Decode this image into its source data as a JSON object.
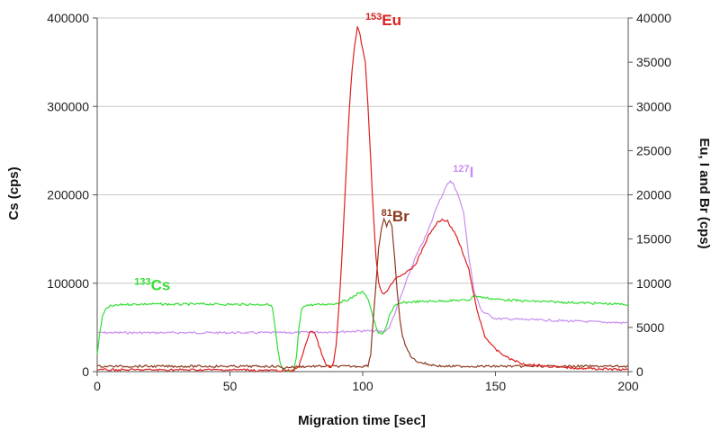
{
  "chart_data": {
    "type": "line",
    "xlabel": "Migration time [sec]",
    "ylabel_left": "Cs (cps)",
    "ylabel_right": "Eu, I and Br (cps)",
    "xlim": [
      0,
      200
    ],
    "ylim_left": [
      0,
      400000
    ],
    "ylim_right": [
      0,
      40000
    ],
    "x_ticks": [
      "0",
      "50",
      "100",
      "150",
      "200"
    ],
    "y_ticks_left": [
      "0",
      "100000",
      "200000",
      "300000",
      "400000"
    ],
    "y_ticks_right": [
      "0",
      "5000",
      "10000",
      "15000",
      "20000",
      "25000",
      "30000",
      "35000",
      "40000"
    ],
    "grid": "horizontal",
    "legend": "inline labels",
    "series": [
      {
        "name": "Cs",
        "isotope": "133",
        "label_x": 14,
        "label_y": 92000,
        "axis": "left",
        "color": "#33dd33",
        "points": [
          [
            0,
            20000
          ],
          [
            1,
            45000
          ],
          [
            2,
            62000
          ],
          [
            3,
            70000
          ],
          [
            5,
            74000
          ],
          [
            10,
            76000
          ],
          [
            20,
            76500
          ],
          [
            30,
            76000
          ],
          [
            40,
            76500
          ],
          [
            50,
            76000
          ],
          [
            60,
            76000
          ],
          [
            65,
            76000
          ],
          [
            66,
            72000
          ],
          [
            67,
            50000
          ],
          [
            68,
            25000
          ],
          [
            69,
            8000
          ],
          [
            70,
            2000
          ],
          [
            72,
            0
          ],
          [
            74,
            1000
          ],
          [
            75,
            15000
          ],
          [
            76,
            50000
          ],
          [
            77,
            70000
          ],
          [
            78,
            75000
          ],
          [
            85,
            76000
          ],
          [
            90,
            77000
          ],
          [
            95,
            82000
          ],
          [
            98,
            88000
          ],
          [
            100,
            90000
          ],
          [
            101,
            88000
          ],
          [
            102,
            82000
          ],
          [
            103,
            72000
          ],
          [
            104,
            60000
          ],
          [
            105,
            50000
          ],
          [
            106,
            44000
          ],
          [
            107,
            42000
          ],
          [
            108,
            44000
          ],
          [
            109,
            52000
          ],
          [
            110,
            64000
          ],
          [
            112,
            74000
          ],
          [
            115,
            78000
          ],
          [
            120,
            79000
          ],
          [
            130,
            80000
          ],
          [
            140,
            81000
          ],
          [
            142,
            86000
          ],
          [
            145,
            84000
          ],
          [
            150,
            82000
          ],
          [
            160,
            80000
          ],
          [
            170,
            79000
          ],
          [
            180,
            78000
          ],
          [
            190,
            77000
          ],
          [
            200,
            76000
          ]
        ]
      },
      {
        "name": "Eu",
        "isotope": "153",
        "label_x": 101,
        "label_y": 39200,
        "axis": "right",
        "color": "#dd2020",
        "points": [
          [
            0,
            200
          ],
          [
            50,
            200
          ],
          [
            58,
            200
          ],
          [
            60,
            100
          ],
          [
            62,
            150
          ],
          [
            70,
            100
          ],
          [
            74,
            100
          ],
          [
            76,
            700
          ],
          [
            78,
            2500
          ],
          [
            80,
            4500
          ],
          [
            81,
            4600
          ],
          [
            82,
            4300
          ],
          [
            84,
            2500
          ],
          [
            86,
            800
          ],
          [
            88,
            400
          ],
          [
            89,
            1000
          ],
          [
            90,
            3000
          ],
          [
            91,
            7000
          ],
          [
            92,
            12000
          ],
          [
            93,
            18000
          ],
          [
            94,
            24000
          ],
          [
            95,
            30000
          ],
          [
            96,
            34000
          ],
          [
            97,
            37000
          ],
          [
            98,
            39000
          ],
          [
            99,
            38000
          ],
          [
            100,
            36500
          ],
          [
            101,
            35000
          ],
          [
            102,
            30000
          ],
          [
            103,
            24000
          ],
          [
            104,
            18000
          ],
          [
            105,
            13000
          ],
          [
            106,
            10000
          ],
          [
            107,
            9000
          ],
          [
            108,
            8800
          ],
          [
            110,
            9500
          ],
          [
            112,
            10500
          ],
          [
            115,
            11000
          ],
          [
            118,
            11500
          ],
          [
            120,
            12200
          ],
          [
            122,
            13500
          ],
          [
            125,
            15500
          ],
          [
            128,
            16800
          ],
          [
            130,
            17200
          ],
          [
            132,
            17000
          ],
          [
            133,
            16500
          ],
          [
            135,
            15500
          ],
          [
            137,
            14000
          ],
          [
            140,
            11500
          ],
          [
            143,
            7000
          ],
          [
            146,
            4000
          ],
          [
            150,
            2500
          ],
          [
            155,
            1500
          ],
          [
            160,
            900
          ],
          [
            170,
            600
          ],
          [
            180,
            400
          ],
          [
            190,
            300
          ],
          [
            200,
            200
          ]
        ]
      },
      {
        "name": "Br",
        "isotope": "81",
        "label_x": 107,
        "label_y": 17000,
        "axis": "right",
        "color": "#8b3a1c",
        "points": [
          [
            0,
            600
          ],
          [
            20,
            600
          ],
          [
            50,
            600
          ],
          [
            60,
            600
          ],
          [
            68,
            600
          ],
          [
            70,
            400
          ],
          [
            72,
            500
          ],
          [
            80,
            600
          ],
          [
            90,
            600
          ],
          [
            100,
            600
          ],
          [
            102,
            700
          ],
          [
            103,
            2000
          ],
          [
            104,
            6000
          ],
          [
            105,
            10000
          ],
          [
            106,
            14000
          ],
          [
            107,
            16000
          ],
          [
            108,
            17200
          ],
          [
            109,
            16500
          ],
          [
            110,
            17000
          ],
          [
            111,
            16500
          ],
          [
            112,
            13000
          ],
          [
            113,
            9000
          ],
          [
            114,
            6000
          ],
          [
            115,
            4000
          ],
          [
            116,
            3000
          ],
          [
            118,
            1800
          ],
          [
            120,
            1200
          ],
          [
            125,
            800
          ],
          [
            130,
            600
          ],
          [
            150,
            600
          ],
          [
            200,
            600
          ]
        ]
      },
      {
        "name": "I",
        "isotope": "127",
        "label_x": 134,
        "label_y": 22000,
        "axis": "right",
        "color": "#c88cf0",
        "points": [
          [
            0,
            4400
          ],
          [
            50,
            4400
          ],
          [
            70,
            4400
          ],
          [
            90,
            4500
          ],
          [
            100,
            4600
          ],
          [
            105,
            4600
          ],
          [
            108,
            4500
          ],
          [
            110,
            5000
          ],
          [
            112,
            6500
          ],
          [
            115,
            9000
          ],
          [
            118,
            11500
          ],
          [
            120,
            13000
          ],
          [
            122,
            14200
          ],
          [
            124,
            15500
          ],
          [
            126,
            17000
          ],
          [
            128,
            18800
          ],
          [
            130,
            20000
          ],
          [
            132,
            21200
          ],
          [
            133,
            21600
          ],
          [
            134,
            21300
          ],
          [
            135,
            20500
          ],
          [
            136,
            20000
          ],
          [
            138,
            18000
          ],
          [
            140,
            13000
          ],
          [
            142,
            9000
          ],
          [
            145,
            6800
          ],
          [
            150,
            6000
          ],
          [
            160,
            5900
          ],
          [
            170,
            5800
          ],
          [
            180,
            5700
          ],
          [
            190,
            5600
          ],
          [
            200,
            5500
          ]
        ]
      }
    ]
  }
}
